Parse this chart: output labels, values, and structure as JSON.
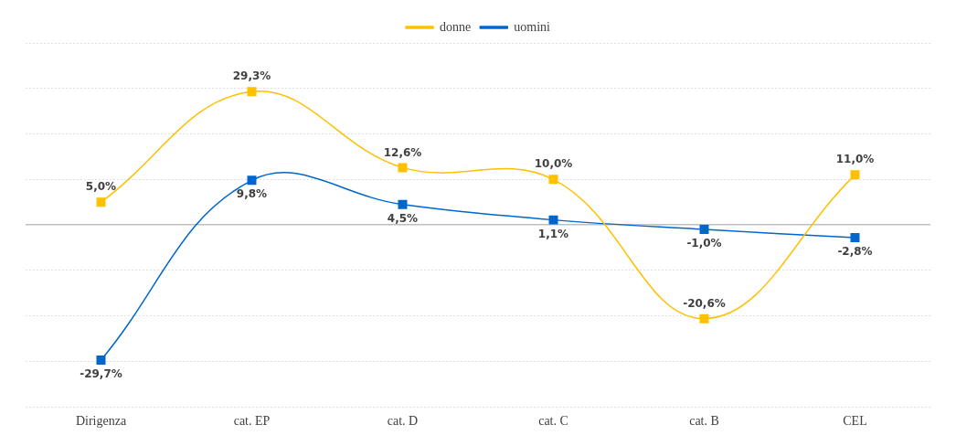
{
  "chart_data": {
    "type": "line",
    "categories": [
      "Dirigenza",
      "cat. EP",
      "cat. D",
      "cat. C",
      "cat. B",
      "CEL"
    ],
    "series": [
      {
        "name": "donne",
        "color": "#ffc000",
        "values": [
          5.0,
          29.3,
          12.6,
          10.0,
          -20.6,
          11.0
        ],
        "value_labels": [
          "5,0%",
          "29,3%",
          "12,6%",
          "10,0%",
          "-20,6%",
          "11,0%"
        ]
      },
      {
        "name": "uomini",
        "color": "#0066cc",
        "values": [
          -29.7,
          9.8,
          4.5,
          1.1,
          -1.0,
          -2.8
        ],
        "value_labels": [
          "-29,7%",
          "9,8%",
          "4,5%",
          "1,1%",
          "-1,0%",
          "-2,8%"
        ]
      }
    ],
    "grid": "y",
    "legend": "top",
    "marker": "square",
    "tick_labels": "x"
  }
}
